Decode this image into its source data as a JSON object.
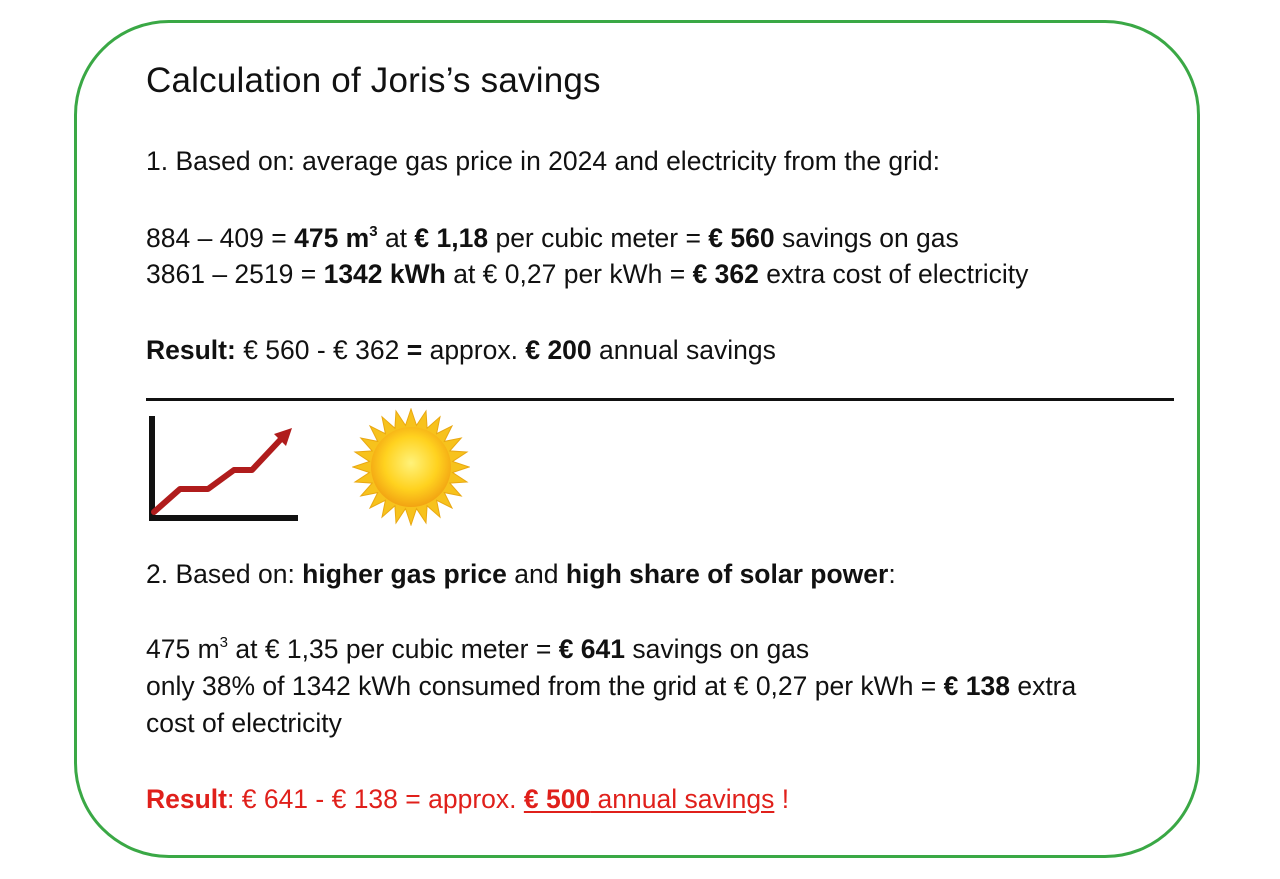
{
  "title": "Calculation of Joris’s savings",
  "section1": {
    "heading": "1. Based on: average gas price in 2024 and electricity from the grid:",
    "gas_line": {
      "calc": "884 – 409 = ",
      "volume": "475 m",
      "volume_sup": "3",
      "mid1": " at ",
      "price": "€ 1,18",
      "mid2": " per cubic meter = ",
      "amount": "€ 560",
      "tail": " savings on gas"
    },
    "elec_line": {
      "calc": "3861 – 2519 = ",
      "volume": "1342 kWh",
      "mid1": " at € 0,27 per kWh = ",
      "amount": "€ 362",
      "tail": " extra cost of electricity"
    },
    "result_line": {
      "label": "Result:",
      "calc": " € 560 - € 362 ",
      "eq": "=",
      "approx": " approx. ",
      "amount": "€ 200",
      "tail": " annual savings"
    }
  },
  "icons": {
    "chart": "rising-line-chart-icon",
    "sun": "sun-icon",
    "chart_line_color": "#b01c1c",
    "sun_color": "#f7c21c"
  },
  "section2": {
    "heading": {
      "prefix": "2. Based on: ",
      "b1": "higher gas price",
      "mid": " and ",
      "b2": "high share of solar power",
      "suffix": ":"
    },
    "gas_line": {
      "volume": "475 m",
      "volume_sup": "3",
      "mid": " at € 1,35 per cubic meter = ",
      "amount": "€ 641",
      "tail": " savings on gas"
    },
    "elec_line": {
      "text": "only 38% of 1342 kWh consumed from the grid at € 0,27 per kWh = ",
      "amount": "€ 138",
      "tail": " extra"
    },
    "elec_line2": "cost of electricity",
    "result_line": {
      "label": "Result",
      "calc": ": € 641 - € 138 = approx. ",
      "amount": "€ 500",
      "tail": " annual savings",
      "end": " !"
    }
  },
  "colors": {
    "border": "#3aa845",
    "result_red": "#e0201b",
    "text": "#111111"
  }
}
